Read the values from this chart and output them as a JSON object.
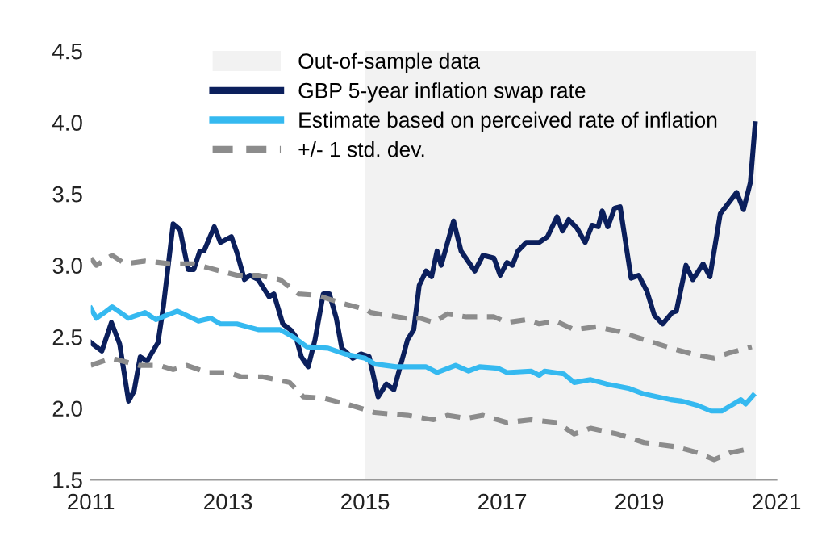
{
  "chart_data": {
    "type": "line",
    "xlim": [
      2011,
      2021
    ],
    "xticks": [
      2011,
      2013,
      2015,
      2017,
      2019,
      2021
    ],
    "ylim": [
      1.5,
      4.5
    ],
    "yticks": [
      {
        "value": 1.5,
        "label": "1.5"
      },
      {
        "value": 2.0,
        "label": "2.0"
      },
      {
        "value": 2.5,
        "label": "2.5"
      },
      {
        "value": 3.0,
        "label": "3.0"
      },
      {
        "value": 3.5,
        "label": "3.5"
      },
      {
        "value": 4.0,
        "label": "4.0"
      },
      {
        "value": 4.5,
        "label": "4.5"
      }
    ],
    "grid": false,
    "legend": "top right",
    "marker": "none",
    "bands": [
      {
        "axis": "x",
        "from": 2015,
        "to": 2020.7,
        "label": "Out-of-sample data",
        "color": "#f2f2f2"
      }
    ],
    "series": [
      {
        "name": "GBP 5-year inflation swap rate",
        "color": "#0b1f5c",
        "line_style": "solid",
        "x": [
          2011.0,
          2011.16,
          2011.3,
          2011.42,
          2011.55,
          2011.63,
          2011.72,
          2011.82,
          2011.98,
          2012.06,
          2012.2,
          2012.3,
          2012.42,
          2012.5,
          2012.59,
          2012.65,
          2012.8,
          2012.89,
          2013.05,
          2013.13,
          2013.24,
          2013.32,
          2013.44,
          2013.6,
          2013.67,
          2013.8,
          2013.91,
          2013.99,
          2014.07,
          2014.17,
          2014.27,
          2014.39,
          2014.48,
          2014.58,
          2014.66,
          2014.82,
          2014.94,
          2015.06,
          2015.19,
          2015.31,
          2015.42,
          2015.62,
          2015.71,
          2015.79,
          2015.89,
          2015.97,
          2016.05,
          2016.11,
          2016.29,
          2016.4,
          2016.6,
          2016.72,
          2016.88,
          2016.97,
          2017.07,
          2017.15,
          2017.23,
          2017.35,
          2017.54,
          2017.66,
          2017.8,
          2017.88,
          2017.97,
          2018.09,
          2018.21,
          2018.31,
          2018.4,
          2018.46,
          2018.54,
          2018.64,
          2018.72,
          2018.8,
          2018.88,
          2018.99,
          2019.11,
          2019.22,
          2019.34,
          2019.48,
          2019.54,
          2019.68,
          2019.78,
          2019.93,
          2020.03,
          2020.18,
          2020.42,
          2020.52,
          2020.62,
          2020.69
        ],
        "values": [
          2.46,
          2.4,
          2.6,
          2.45,
          2.05,
          2.12,
          2.36,
          2.33,
          2.46,
          2.72,
          3.29,
          3.25,
          2.97,
          2.97,
          3.1,
          3.1,
          3.27,
          3.16,
          3.2,
          3.09,
          2.9,
          2.93,
          2.9,
          2.78,
          2.8,
          2.59,
          2.55,
          2.5,
          2.36,
          2.29,
          2.48,
          2.8,
          2.8,
          2.63,
          2.42,
          2.35,
          2.38,
          2.36,
          2.08,
          2.17,
          2.13,
          2.48,
          2.55,
          2.86,
          2.96,
          2.92,
          3.1,
          3.0,
          3.31,
          3.1,
          2.96,
          3.07,
          3.05,
          2.93,
          3.02,
          3.0,
          3.1,
          3.16,
          3.16,
          3.2,
          3.34,
          3.24,
          3.32,
          3.26,
          3.16,
          3.28,
          3.27,
          3.38,
          3.27,
          3.4,
          3.41,
          3.16,
          2.91,
          2.93,
          2.82,
          2.65,
          2.59,
          2.67,
          2.68,
          3.0,
          2.9,
          3.01,
          2.92,
          3.36,
          3.51,
          3.39,
          3.58,
          3.99
        ]
      },
      {
        "name": "Estimate based on perceived rate of inflation",
        "color": "#35b9f0",
        "line_style": "solid",
        "x": [
          2011.0,
          2011.08,
          2011.2,
          2011.31,
          2011.55,
          2011.79,
          2011.95,
          2012.05,
          2012.26,
          2012.57,
          2012.75,
          2012.89,
          2013.13,
          2013.44,
          2013.76,
          2013.95,
          2014.15,
          2014.46,
          2014.7,
          2015.0,
          2015.14,
          2015.45,
          2015.89,
          2016.05,
          2016.32,
          2016.51,
          2016.67,
          2016.94,
          2017.07,
          2017.42,
          2017.54,
          2017.62,
          2017.9,
          2018.05,
          2018.29,
          2018.52,
          2018.84,
          2019.07,
          2019.46,
          2019.62,
          2019.85,
          2020.05,
          2020.2,
          2020.48,
          2020.55,
          2020.66
        ],
        "values": [
          2.7,
          2.63,
          2.67,
          2.71,
          2.63,
          2.67,
          2.62,
          2.64,
          2.68,
          2.61,
          2.63,
          2.59,
          2.59,
          2.55,
          2.55,
          2.5,
          2.43,
          2.42,
          2.38,
          2.35,
          2.31,
          2.29,
          2.29,
          2.25,
          2.3,
          2.26,
          2.29,
          2.28,
          2.25,
          2.26,
          2.23,
          2.26,
          2.24,
          2.18,
          2.2,
          2.17,
          2.14,
          2.1,
          2.06,
          2.05,
          2.02,
          1.98,
          1.98,
          2.06,
          2.03,
          2.09
        ]
      },
      {
        "name": "+/- 1 std. dev.",
        "color": "#8c8c8c",
        "line_style": "dashed",
        "x": [
          2011.0,
          2011.08,
          2011.31,
          2011.5,
          2011.79,
          2012.0,
          2012.18,
          2012.5,
          2012.81,
          2013.13,
          2013.44,
          2013.76,
          2014.03,
          2014.3,
          2014.7,
          2015.02,
          2015.08,
          2015.6,
          2015.8,
          2016.0,
          2016.2,
          2016.48,
          2016.88,
          2017.07,
          2017.35,
          2017.54,
          2017.78,
          2018.05,
          2018.37,
          2018.68,
          2019.07,
          2019.54,
          2019.85,
          2020.09,
          2020.33,
          2020.64
        ],
        "values": [
          3.05,
          3.0,
          3.07,
          3.01,
          3.03,
          3.02,
          3.01,
          3.01,
          2.97,
          2.93,
          2.93,
          2.9,
          2.8,
          2.79,
          2.73,
          2.69,
          2.67,
          2.63,
          2.63,
          2.6,
          2.66,
          2.64,
          2.64,
          2.6,
          2.62,
          2.59,
          2.61,
          2.55,
          2.57,
          2.54,
          2.48,
          2.41,
          2.37,
          2.35,
          2.39,
          2.43
        ]
      },
      {
        "color": "#8c8c8c",
        "line_style": "dashed",
        "x": [
          2011.0,
          2011.3,
          2011.7,
          2012.0,
          2012.2,
          2012.4,
          2012.7,
          2013.0,
          2013.2,
          2013.5,
          2013.9,
          2014.1,
          2014.4,
          2014.8,
          2015.14,
          2015.62,
          2016.0,
          2016.2,
          2016.48,
          2016.72,
          2017.07,
          2017.42,
          2017.8,
          2018.05,
          2018.29,
          2018.68,
          2019.07,
          2019.54,
          2019.85,
          2020.09,
          2020.33,
          2020.64
        ],
        "values": [
          2.3,
          2.35,
          2.3,
          2.3,
          2.27,
          2.3,
          2.25,
          2.25,
          2.22,
          2.22,
          2.18,
          2.08,
          2.07,
          2.02,
          1.97,
          1.95,
          1.92,
          1.95,
          1.93,
          1.95,
          1.9,
          1.92,
          1.9,
          1.82,
          1.86,
          1.82,
          1.76,
          1.73,
          1.69,
          1.64,
          1.69,
          1.72
        ]
      }
    ]
  }
}
